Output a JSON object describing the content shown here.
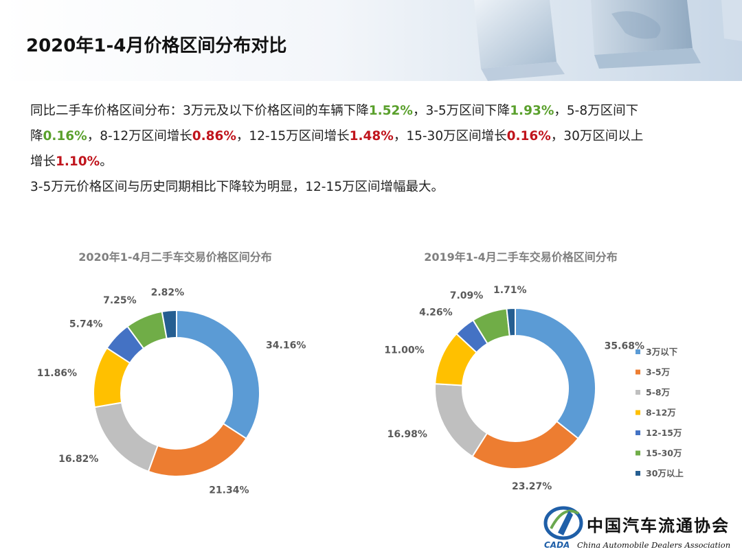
{
  "page": {
    "title": "2020年1-4月价格区间分布对比",
    "summary": {
      "l1_t1": "同比二手车价格区间分布：3万元及以下价格区间的车辆下降",
      "l1_v1": "1.52%",
      "l1_t2": "，3-5万区间下降",
      "l1_v2": "1.93%",
      "l1_t3": "，5-8万区间下",
      "l2_t1": "降",
      "l2_v1": "0.16%",
      "l2_t2": "，8-12万区间增长",
      "l2_v2": "0.86%",
      "l2_t3": "，12-15万区间增长",
      "l2_v3": "1.48%",
      "l2_t4": "，15-30万区间增长",
      "l2_v4": "0.16%",
      "l2_t5": "，30万区间以上",
      "l3_t1": "增长",
      "l3_v1": "1.10%",
      "l3_t2": "。",
      "l4": "3-5万元价格区间与历史同期相比下降较为明显，12-15万区间增幅最大。"
    },
    "colors": {
      "increase": "#c0141c",
      "decrease": "#5aa02c"
    }
  },
  "chart_data": [
    {
      "type": "pie",
      "title": "2020年1-4月二手车交易价格区间分布",
      "categories": [
        "3万以下",
        "3-5万",
        "5-8万",
        "8-12万",
        "12-15万",
        "15-30万",
        "30万以上"
      ],
      "values": [
        34.16,
        21.34,
        16.82,
        11.86,
        5.74,
        7.25,
        2.82
      ],
      "labels": [
        "34.16%",
        "21.34%",
        "16.82%",
        "11.86%",
        "5.74%",
        "7.25%",
        "2.82%"
      ],
      "colors": [
        "#5b9bd5",
        "#ed7d31",
        "#bfbfbf",
        "#ffc000",
        "#4472c4",
        "#70ad47",
        "#255e91"
      ],
      "donut": true
    },
    {
      "type": "pie",
      "title": "2019年1-4月二手车交易价格区间分布",
      "categories": [
        "3万以下",
        "3-5万",
        "5-8万",
        "8-12万",
        "12-15万",
        "15-30万",
        "30万以上"
      ],
      "values": [
        35.68,
        23.27,
        16.98,
        11.0,
        4.26,
        7.09,
        1.71
      ],
      "labels": [
        "35.68%",
        "23.27%",
        "16.98%",
        "11.00%",
        "4.26%",
        "7.09%",
        "1.71%"
      ],
      "colors": [
        "#5b9bd5",
        "#ed7d31",
        "#bfbfbf",
        "#ffc000",
        "#4472c4",
        "#70ad47",
        "#255e91"
      ],
      "donut": true,
      "legend": "right"
    }
  ],
  "logo": {
    "cn": "中国汽车流通协会",
    "en": "China Automobile Dealers Association",
    "abbr": "CADA"
  }
}
